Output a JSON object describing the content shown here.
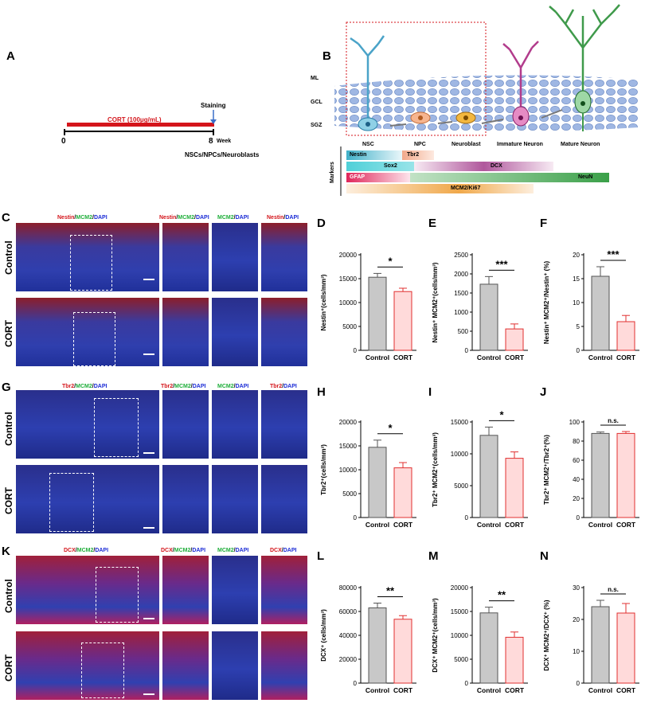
{
  "panels": {
    "A": "A",
    "B": "B",
    "C": "C",
    "D": "D",
    "E": "E",
    "F": "F",
    "G": "G",
    "H": "H",
    "I": "I",
    "J": "J",
    "K": "K",
    "L": "L",
    "M": "M",
    "N": "N"
  },
  "timeline": {
    "treatment": "CORT (100μg/mL)",
    "staining": "Staining",
    "start": "0",
    "end": "8",
    "unit": "Week",
    "target": "NSCs/NPCs/Neuroblasts"
  },
  "schematic": {
    "layers": [
      "ML",
      "GCL",
      "SGZ"
    ],
    "cells": [
      "NSC",
      "NPC",
      "Neuroblast",
      "Immature Neuron",
      "Mature Neuron"
    ],
    "markers_title": "Markers",
    "markers": [
      "Nestin",
      "Tbr2",
      "Sox2",
      "DCX",
      "GFAP",
      "NeuN",
      "MCM2/Ki67"
    ]
  },
  "rows": {
    "control": "Control",
    "cort": "CORT"
  },
  "headers": {
    "C": {
      "merge_a": "Nestin",
      "merge_b": "MCM2",
      "merge_c": "DAPI",
      "s1a": "MCM2",
      "s1b": "DAPI",
      "s2a": "Nestin",
      "s2b": "DAPI"
    },
    "G": {
      "merge_a": "Tbr2",
      "merge_b": "MCM2",
      "merge_c": "DAPI",
      "s1a": "MCM2",
      "s1b": "DAPI",
      "s2a": "Tbr2",
      "s2b": "DAPI"
    },
    "K": {
      "merge_a": "DCX",
      "merge_b": "MCM2",
      "merge_c": "DAPI",
      "s1a": "MCM2",
      "s1b": "DAPI",
      "s2a": "DCX",
      "s2b": "DAPI"
    }
  },
  "chart_data": [
    {
      "id": "D",
      "type": "bar",
      "categories": [
        "Control",
        "CORT"
      ],
      "values": [
        15300,
        12300
      ],
      "errors": [
        800,
        700
      ],
      "ylim": [
        0,
        20000
      ],
      "yticks": [
        "0",
        "5000",
        "10000",
        "15000",
        "20000"
      ],
      "ylabel": "Nestin⁺(cells/mm³)",
      "sig": "*"
    },
    {
      "id": "E",
      "type": "bar",
      "categories": [
        "Control",
        "CORT"
      ],
      "values": [
        1730,
        560
      ],
      "errors": [
        200,
        130
      ],
      "ylim": [
        0,
        2500
      ],
      "yticks": [
        "0",
        "500",
        "1000",
        "1500",
        "2000",
        "2500"
      ],
      "ylabel": "Nestin⁺ MCM2⁺(cells/mm³)",
      "sig": "***"
    },
    {
      "id": "F",
      "type": "bar",
      "categories": [
        "Control",
        "CORT"
      ],
      "values": [
        15.5,
        6.0
      ],
      "errors": [
        2.0,
        1.3
      ],
      "ylim": [
        0,
        20
      ],
      "yticks": [
        "0",
        "5",
        "10",
        "15",
        "20"
      ],
      "ylabel": "Nestin⁺ MCM2⁺/Nestin⁺ (%)",
      "sig": "***"
    },
    {
      "id": "H",
      "type": "bar",
      "categories": [
        "Control",
        "CORT"
      ],
      "values": [
        14700,
        10400
      ],
      "errors": [
        1500,
        1100
      ],
      "ylim": [
        0,
        20000
      ],
      "yticks": [
        "0",
        "5000",
        "10000",
        "15000",
        "20000"
      ],
      "ylabel": "Tbr2⁺(cells/mm³)",
      "sig": "*"
    },
    {
      "id": "I",
      "type": "bar",
      "categories": [
        "Control",
        "CORT"
      ],
      "values": [
        12900,
        9300
      ],
      "errors": [
        1300,
        1000
      ],
      "ylim": [
        0,
        15000
      ],
      "yticks": [
        "0",
        "5000",
        "10000",
        "15000"
      ],
      "ylabel": "Tbr2⁺ MCM2⁺(cells/mm³)",
      "sig": "*"
    },
    {
      "id": "J",
      "type": "bar",
      "categories": [
        "Control",
        "CORT"
      ],
      "values": [
        88,
        88
      ],
      "errors": [
        1.5,
        2
      ],
      "ylim": [
        0,
        100
      ],
      "yticks": [
        "0",
        "20",
        "40",
        "60",
        "80",
        "100"
      ],
      "ylabel": "Tbr2⁺ MCM2⁺/Tbr2⁺(%)",
      "sig": "n.s."
    },
    {
      "id": "L",
      "type": "bar",
      "categories": [
        "Control",
        "CORT"
      ],
      "values": [
        63000,
        53500
      ],
      "errors": [
        4000,
        3000
      ],
      "ylim": [
        0,
        80000
      ],
      "yticks": [
        "0",
        "20000",
        "40000",
        "60000",
        "80000"
      ],
      "ylabel": "DCX⁺ (cells/mm³)",
      "sig": "**"
    },
    {
      "id": "M",
      "type": "bar",
      "categories": [
        "Control",
        "CORT"
      ],
      "values": [
        14700,
        9600
      ],
      "errors": [
        1200,
        1100
      ],
      "ylim": [
        0,
        20000
      ],
      "yticks": [
        "0",
        "5000",
        "10000",
        "15000",
        "20000"
      ],
      "ylabel": "DCX⁺ MCM2⁺(cells/mm³)",
      "sig": "**"
    },
    {
      "id": "N",
      "type": "bar",
      "categories": [
        "Control",
        "CORT"
      ],
      "values": [
        24,
        22
      ],
      "errors": [
        2,
        3
      ],
      "ylim": [
        0,
        30
      ],
      "yticks": [
        "0",
        "10",
        "20",
        "30"
      ],
      "ylabel": "DCX⁺ MCM2⁺/DCX⁺ (%)",
      "sig": "n.s."
    }
  ],
  "colors": {
    "control": "#c8c8c8",
    "cort": "#ffdada",
    "cort_edge": "#e03030",
    "cort_line": "#d42020"
  }
}
